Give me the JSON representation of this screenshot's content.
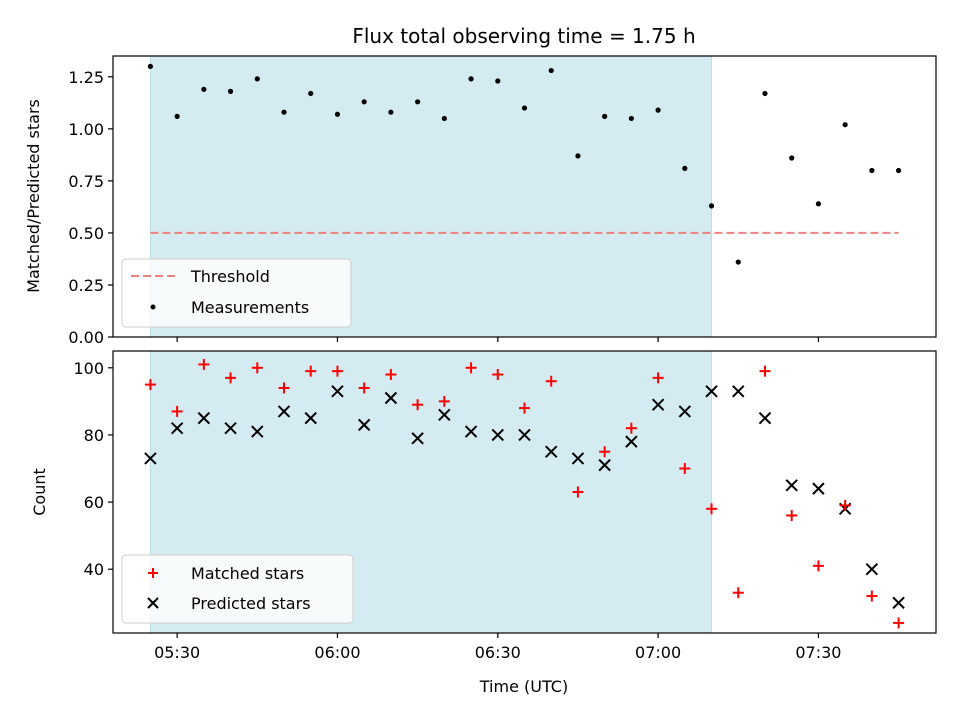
{
  "chart_data": [
    {
      "type": "scatter",
      "title": "Flux total observing time = 1.75 h",
      "xlabel": "",
      "ylabel": "Matched/Predicted stars",
      "ylim": [
        0,
        1.35
      ],
      "yticks": [
        "0.00",
        "0.25",
        "0.50",
        "0.75",
        "1.00",
        "1.25"
      ],
      "yticks_values": [
        0,
        0.25,
        0.5,
        0.75,
        1.0,
        1.25
      ],
      "shaded_interval": [
        "05:25",
        "07:10"
      ],
      "shaded_color": "#d4ebf1",
      "legend": [
        {
          "name": "Threshold",
          "marker": "dashed-line",
          "color": "#f08080"
        },
        {
          "name": "Measurements",
          "marker": "dot",
          "color": "#000000"
        }
      ],
      "legend_position": "lower-left",
      "series": [
        {
          "name": "Threshold",
          "x": [
            "05:25",
            "07:45"
          ],
          "values": [
            0.5,
            0.5
          ],
          "color": "#f08080",
          "style": "dashed"
        },
        {
          "name": "Measurements",
          "x": [
            "05:25",
            "05:30",
            "05:35",
            "05:40",
            "05:45",
            "05:50",
            "05:55",
            "06:00",
            "06:05",
            "06:10",
            "06:15",
            "06:20",
            "06:25",
            "06:30",
            "06:35",
            "06:40",
            "06:45",
            "06:50",
            "06:55",
            "07:00",
            "07:05",
            "07:10",
            "07:15",
            "07:20",
            "07:25",
            "07:30",
            "07:35",
            "07:40",
            "07:45"
          ],
          "values": [
            1.3,
            1.06,
            1.19,
            1.18,
            1.24,
            1.08,
            1.17,
            1.07,
            1.13,
            1.08,
            1.13,
            1.05,
            1.24,
            1.23,
            1.1,
            1.28,
            0.87,
            1.06,
            1.05,
            1.09,
            0.81,
            0.63,
            0.36,
            1.17,
            0.86,
            0.64,
            1.02,
            0.8,
            0.8
          ],
          "color": "#000000"
        }
      ]
    },
    {
      "type": "scatter",
      "xlabel": "Time (UTC)",
      "ylabel": "Count",
      "ylim": [
        21,
        105
      ],
      "yticks": [
        "40",
        "60",
        "80",
        "100"
      ],
      "yticks_values": [
        40,
        60,
        80,
        100
      ],
      "xlim": [
        "05:18",
        "07:52"
      ],
      "xticks": [
        "05:30",
        "06:00",
        "06:30",
        "07:00",
        "07:30"
      ],
      "shaded_interval": [
        "05:25",
        "07:10"
      ],
      "shaded_color": "#d4ebf1",
      "legend": [
        {
          "name": "Matched stars",
          "marker": "plus",
          "color": "#ff0000"
        },
        {
          "name": "Predicted stars",
          "marker": "x",
          "color": "#000000"
        }
      ],
      "legend_position": "lower-left",
      "x": [
        "05:25",
        "05:30",
        "05:35",
        "05:40",
        "05:45",
        "05:50",
        "05:55",
        "06:00",
        "06:05",
        "06:10",
        "06:15",
        "06:20",
        "06:25",
        "06:30",
        "06:35",
        "06:40",
        "06:45",
        "06:50",
        "06:55",
        "07:00",
        "07:05",
        "07:10",
        "07:15",
        "07:20",
        "07:25",
        "07:30",
        "07:35",
        "07:40",
        "07:45"
      ],
      "series": [
        {
          "name": "Matched stars",
          "values": [
            95,
            87,
            101,
            97,
            100,
            94,
            99,
            99,
            94,
            98,
            89,
            90,
            100,
            98,
            88,
            96,
            63,
            75,
            82,
            97,
            70,
            58,
            33,
            99,
            56,
            41,
            59,
            32,
            24
          ],
          "color": "#ff0000",
          "marker": "plus"
        },
        {
          "name": "Predicted stars",
          "values": [
            73,
            82,
            85,
            82,
            81,
            87,
            85,
            93,
            83,
            91,
            79,
            86,
            81,
            80,
            80,
            75,
            73,
            71,
            78,
            89,
            87,
            93,
            93,
            85,
            65,
            64,
            58,
            40,
            30
          ],
          "color": "#000000",
          "marker": "x"
        }
      ]
    }
  ]
}
